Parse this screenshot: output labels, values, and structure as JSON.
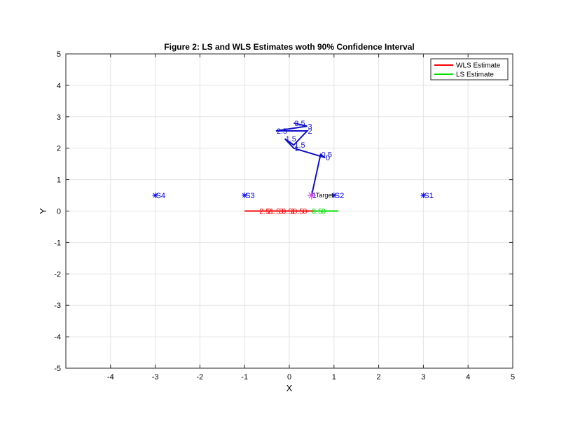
{
  "chart_data": {
    "type": "line",
    "title": "Figure 2: LS and WLS Estimates woth 90% Confidence Interval",
    "xlabel": "X",
    "ylabel": "Y",
    "xlim": [
      -5,
      5
    ],
    "ylim": [
      -5,
      5
    ],
    "xticks": [
      -4,
      -3,
      -2,
      -1,
      0,
      1,
      2,
      3,
      4,
      5
    ],
    "yticks": [
      -5,
      -4,
      -3,
      -2,
      -1,
      0,
      1,
      2,
      3,
      4,
      5
    ],
    "grid": true,
    "legend_position": "top-right",
    "legend": [
      {
        "label": "WLS Estimate",
        "color": "#ff0000"
      },
      {
        "label": "LS Estimate",
        "color": "#00dd00"
      }
    ],
    "sensors": [
      {
        "label": "S1",
        "x": 3,
        "y": 0.5
      },
      {
        "label": "S2",
        "x": 1,
        "y": 0.5
      },
      {
        "label": "S3",
        "x": -1,
        "y": 0.5
      },
      {
        "label": "S4",
        "x": -3,
        "y": 0.5
      }
    ],
    "target": {
      "label": "Target",
      "x": 0.5,
      "y": 0.5,
      "color": "#cc44ee"
    },
    "sensor_color": "#0000ff",
    "trajectory": {
      "color": "#1111cc",
      "points": [
        {
          "x": 0.5,
          "y": 0.5,
          "label": "1"
        },
        {
          "x": 0.7,
          "y": 1.8,
          "label": "0.5"
        },
        {
          "x": 0.8,
          "y": 1.7,
          "label": "0"
        },
        {
          "x": 0.1,
          "y": 2.0,
          "label": "1"
        },
        {
          "x": -0.1,
          "y": 2.3,
          "label": "1.5"
        },
        {
          "x": 0.1,
          "y": 2.1,
          "label": "1.5"
        },
        {
          "x": 0.4,
          "y": 2.55,
          "label": "2"
        },
        {
          "x": -0.3,
          "y": 2.55,
          "label": "2.5"
        },
        {
          "x": 0.4,
          "y": 2.7,
          "label": "3"
        },
        {
          "x": 0.1,
          "y": 2.8,
          "label": "3.5"
        }
      ]
    },
    "wls_interval": {
      "x": [
        -1.0,
        0.6
      ],
      "y": 0,
      "color": "#ff0000",
      "labels": [
        "2.5",
        "2",
        "1.5",
        "3",
        "0.5",
        "1",
        "0.5",
        "0"
      ],
      "label_x": [
        -0.55,
        -0.45,
        -0.32,
        -0.18,
        -0.05,
        0.08,
        0.2,
        0.35
      ]
    },
    "ls_interval": {
      "x": [
        0.55,
        1.1
      ],
      "y": 0,
      "color": "#00dd00",
      "labels": [
        "0.5",
        "0"
      ],
      "label_x": [
        0.5,
        0.72
      ]
    }
  }
}
